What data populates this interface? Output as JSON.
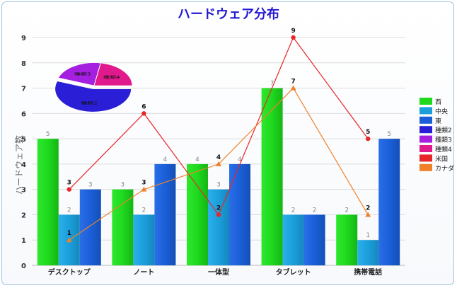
{
  "chart_data": {
    "type": "bar",
    "title": "ハードウェア分布",
    "xlabel": "",
    "ylabel": "ハードウェア数",
    "ylim": [
      0,
      9
    ],
    "yticks": [
      0,
      1,
      2,
      3,
      4,
      5,
      6,
      7,
      8,
      9
    ],
    "grid": true,
    "legend_position": "right",
    "categories": [
      "デスクトップ",
      "ノート",
      "一体型",
      "タブレット",
      "携帯電話"
    ],
    "series": [
      {
        "name": "西",
        "type": "bar",
        "color": "#1ed91e",
        "values": [
          5,
          3,
          4,
          7,
          2
        ]
      },
      {
        "name": "中央",
        "type": "bar",
        "color": "#1b9fdc",
        "values": [
          2,
          2,
          3,
          2,
          1
        ]
      },
      {
        "name": "東",
        "type": "bar",
        "color": "#1a5fd8",
        "values": [
          3,
          4,
          4,
          2,
          5
        ]
      },
      {
        "name": "米国",
        "type": "line",
        "color": "#e8262a",
        "marker": "circle",
        "values": [
          3,
          6,
          2,
          9,
          5
        ]
      },
      {
        "name": "カナダ",
        "type": "line",
        "color": "#f0802a",
        "marker": "triangle",
        "values": [
          1,
          3,
          4,
          7,
          2
        ]
      }
    ],
    "pie": {
      "slices": [
        {
          "name": "種類2",
          "value": 5,
          "color": "#2a1fd6"
        },
        {
          "name": "種類3",
          "value": 2,
          "color": "#a41fe0"
        },
        {
          "name": "種類4",
          "value": 2,
          "color": "#e01a8c"
        }
      ]
    }
  }
}
